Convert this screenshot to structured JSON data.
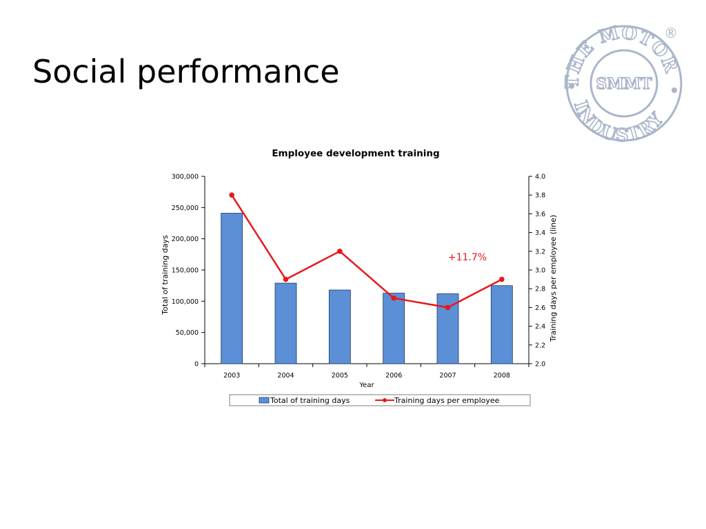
{
  "slide": {
    "title": "Social performance"
  },
  "logo": {
    "ring_text": "THE MOTOR INDUSTRY",
    "ring_top": "THE MOTOR",
    "ring_bottom": "INDUSTRY",
    "center_text": "SMMT",
    "registered_mark": "®",
    "color": "#a9b6c9"
  },
  "chart_data": {
    "type": "bar",
    "title": "Employee development training",
    "xlabel": "Year",
    "ylabel": "Total of training days",
    "y2label": "Training days per employee (line)",
    "categories": [
      "2003",
      "2004",
      "2005",
      "2006",
      "2007",
      "2008"
    ],
    "ylim": [
      0,
      300000
    ],
    "yticks": [
      0,
      50000,
      100000,
      150000,
      200000,
      250000,
      300000
    ],
    "ytick_labels": [
      "0",
      "50,000",
      "100,000",
      "150,000",
      "200,000",
      "250,000",
      "300,000"
    ],
    "y2lim": [
      2.0,
      4.0
    ],
    "y2ticks": [
      2.0,
      2.2,
      2.4,
      2.6,
      2.8,
      3.0,
      3.2,
      3.4,
      3.6,
      3.8,
      4.0
    ],
    "y2tick_labels": [
      "2.0",
      "2.2",
      "2.4",
      "2.6",
      "2.8",
      "3.0",
      "3.2",
      "3.4",
      "3.6",
      "3.8",
      "4.0"
    ],
    "series": [
      {
        "name": "Total of training days",
        "type": "bar",
        "axis": "left",
        "color": "#5b8fd6",
        "values": [
          241000,
          129000,
          118000,
          113000,
          112000,
          125000
        ]
      },
      {
        "name": "Training days per employee",
        "type": "line",
        "axis": "right",
        "color": "#e8171b",
        "values": [
          3.8,
          2.9,
          3.2,
          2.7,
          2.6,
          2.9
        ]
      }
    ],
    "annotations": [
      {
        "text": "+11.7%",
        "color": "#e8171b"
      }
    ],
    "legend": {
      "position": "bottom"
    },
    "grid": false
  }
}
